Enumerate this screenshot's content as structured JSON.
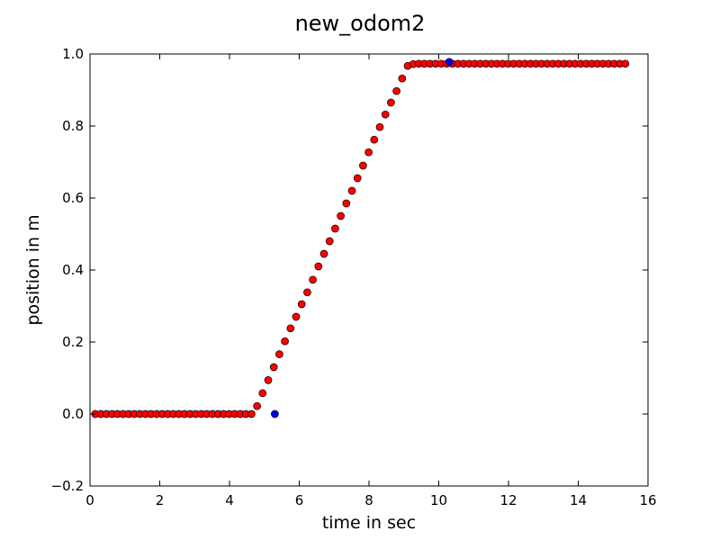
{
  "chart_data": {
    "type": "scatter",
    "title": "new_odom2",
    "xlabel": "time in sec",
    "ylabel": "position in m",
    "xlim": [
      0,
      16
    ],
    "ylim": [
      -0.2,
      1.0
    ],
    "xticks": [
      0,
      2,
      4,
      6,
      8,
      10,
      12,
      14,
      16
    ],
    "xtick_labels": [
      "0",
      "2",
      "4",
      "6",
      "8",
      "10",
      "12",
      "14",
      "16"
    ],
    "yticks": [
      -0.2,
      0.0,
      0.2,
      0.4,
      0.6,
      0.8,
      1.0
    ],
    "ytick_labels": [
      "−0.2",
      "0.0",
      "0.2",
      "0.4",
      "0.6",
      "0.8",
      "1.0"
    ],
    "grid": false,
    "legend": "none",
    "series": [
      {
        "color": "#ff0000",
        "x": [
          0.15,
          0.31,
          0.47,
          0.63,
          0.79,
          0.95,
          1.11,
          1.27,
          1.43,
          1.59,
          1.75,
          1.91,
          2.07,
          2.23,
          2.39,
          2.55,
          2.71,
          2.87,
          3.03,
          3.19,
          3.35,
          3.51,
          3.67,
          3.83,
          3.99,
          4.15,
          4.31,
          4.47,
          4.63,
          4.79,
          4.95,
          5.11,
          5.27,
          5.43,
          5.59,
          5.75,
          5.91,
          6.07,
          6.23,
          6.39,
          6.55,
          6.71,
          6.87,
          7.03,
          7.19,
          7.35,
          7.51,
          7.67,
          7.83,
          7.99,
          8.15,
          8.31,
          8.47,
          8.63,
          8.79,
          8.95,
          9.11,
          9.27,
          9.43,
          9.59,
          9.75,
          9.91,
          10.07,
          10.23,
          10.39,
          10.55,
          10.71,
          10.87,
          11.03,
          11.19,
          11.35,
          11.51,
          11.67,
          11.83,
          11.99,
          12.15,
          12.31,
          12.47,
          12.63,
          12.79,
          12.95,
          13.11,
          13.27,
          13.43,
          13.59,
          13.75,
          13.91,
          14.07,
          14.23,
          14.39,
          14.55,
          14.71,
          14.87,
          15.03,
          15.19,
          15.35
        ],
        "y": [
          0.0,
          0.0,
          0.0,
          0.0,
          0.0,
          0.0,
          0.0,
          0.0,
          0.0,
          0.0,
          0.0,
          0.0,
          0.0,
          0.0,
          0.0,
          0.0,
          0.0,
          0.0,
          0.0,
          0.0,
          0.0,
          0.0,
          0.0,
          0.0,
          0.0,
          0.0,
          0.0,
          0.0,
          0.0,
          0.022,
          0.058,
          0.094,
          0.13,
          0.166,
          0.202,
          0.238,
          0.27,
          0.305,
          0.338,
          0.373,
          0.41,
          0.445,
          0.48,
          0.515,
          0.55,
          0.585,
          0.62,
          0.655,
          0.69,
          0.727,
          0.762,
          0.797,
          0.832,
          0.865,
          0.897,
          0.932,
          0.967,
          0.972,
          0.973,
          0.973,
          0.973,
          0.973,
          0.973,
          0.973,
          0.973,
          0.973,
          0.973,
          0.973,
          0.973,
          0.973,
          0.973,
          0.973,
          0.973,
          0.973,
          0.973,
          0.973,
          0.973,
          0.973,
          0.973,
          0.973,
          0.973,
          0.973,
          0.973,
          0.973,
          0.973,
          0.973,
          0.973,
          0.973,
          0.973,
          0.973,
          0.973,
          0.973,
          0.973,
          0.973,
          0.973,
          0.973
        ]
      },
      {
        "color": "#0000ff",
        "x": [
          5.3,
          10.3
        ],
        "y": [
          0.0,
          0.978
        ]
      }
    ]
  }
}
